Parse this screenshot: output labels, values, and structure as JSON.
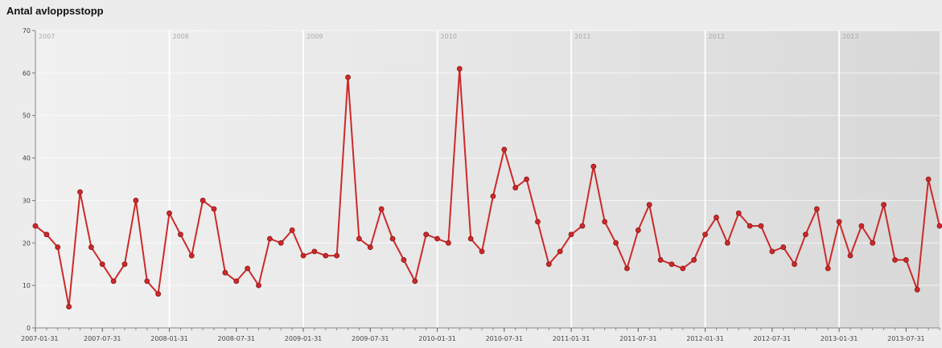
{
  "chart_data": {
    "type": "line",
    "title": "Antal avloppsstopp",
    "xlabel": "",
    "ylabel": "",
    "ylim": [
      0,
      70
    ],
    "yticks": [
      0,
      10,
      20,
      30,
      40,
      50,
      60,
      70
    ],
    "grid": true,
    "legend": "none",
    "line_color": "#cc2a2a",
    "x_start": "2007-01-31",
    "x_end": "2013-12-31",
    "x_tick_labels": [
      "2007-01-31",
      "2007-07-31",
      "2008-01-31",
      "2008-07-31",
      "2009-01-31",
      "2009-07-31",
      "2010-01-31",
      "2010-07-31",
      "2011-01-31",
      "2011-07-31",
      "2012-01-31",
      "2012-07-31",
      "2013-01-31",
      "2013-07-31"
    ],
    "year_labels": [
      "2007",
      "2008",
      "2009",
      "2010",
      "2011",
      "2012",
      "2013"
    ],
    "series": [
      {
        "values": [
          24,
          22,
          19,
          5,
          32,
          19,
          15,
          11,
          15,
          30,
          11,
          8,
          27,
          22,
          17,
          30,
          28,
          13,
          11,
          14,
          10,
          21,
          20,
          23,
          17,
          18,
          17,
          17,
          59,
          21,
          19,
          28,
          21,
          16,
          11,
          22,
          21,
          20,
          61,
          21,
          18,
          31,
          42,
          33,
          35,
          25,
          15,
          18,
          22,
          24,
          38,
          25,
          20,
          14,
          23,
          29,
          16,
          15,
          14,
          16,
          22,
          26,
          20,
          27,
          24,
          24,
          18,
          19,
          15,
          22,
          28,
          14,
          25,
          17,
          24,
          20,
          29,
          16,
          16,
          9,
          35,
          24
        ]
      }
    ]
  }
}
